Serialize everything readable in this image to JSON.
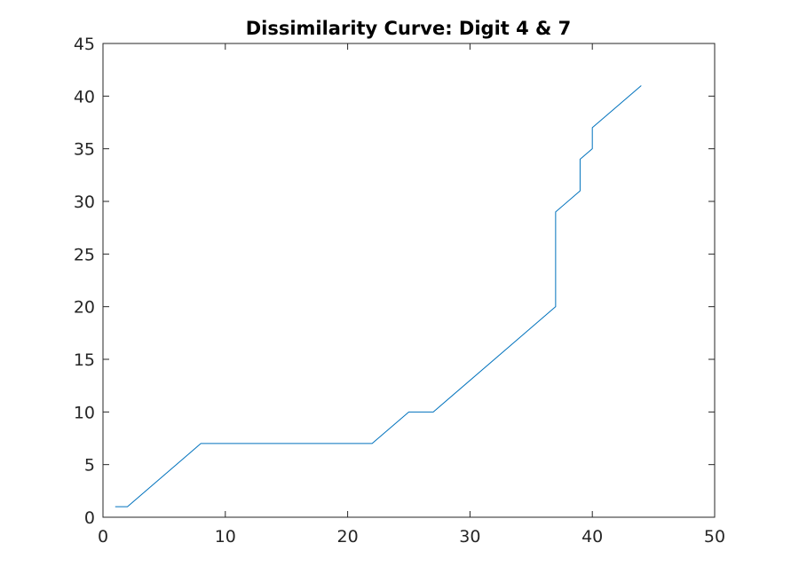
{
  "chart_data": {
    "type": "line",
    "title": "Dissimilarity Curve: Digit 4 & 7",
    "xlabel": "",
    "ylabel": "",
    "xlim": [
      0,
      50
    ],
    "ylim": [
      0,
      45
    ],
    "xticks": [
      0,
      10,
      20,
      30,
      40,
      50
    ],
    "yticks": [
      0,
      5,
      10,
      15,
      20,
      25,
      30,
      35,
      40,
      45
    ],
    "xtick_labels": [
      "0",
      "10",
      "20",
      "30",
      "40",
      "50"
    ],
    "ytick_labels": [
      "0",
      "5",
      "10",
      "15",
      "20",
      "25",
      "30",
      "35",
      "40",
      "45"
    ],
    "grid": false,
    "legend": "none",
    "series": [
      {
        "color": "#0072bd",
        "x": [
          1,
          2,
          8,
          22,
          25,
          27,
          37,
          37,
          39,
          39,
          40,
          40,
          44
        ],
        "y": [
          1,
          1,
          7,
          7,
          10,
          10,
          20,
          29,
          31,
          34,
          35,
          37,
          41
        ]
      }
    ]
  }
}
